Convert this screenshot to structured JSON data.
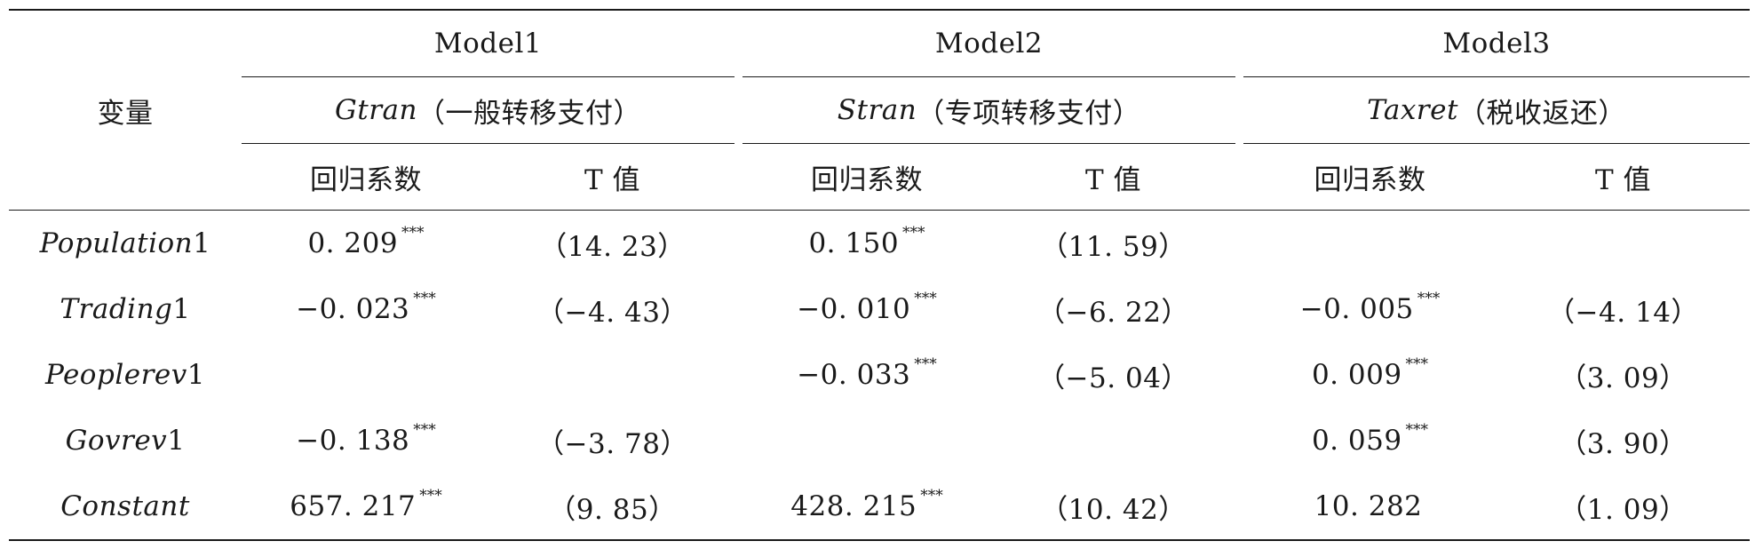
{
  "table": {
    "row_header_label": "变量",
    "models": [
      {
        "name": "Model1",
        "dep_var": "Gtran",
        "dep_desc": "（一般转移支付）"
      },
      {
        "name": "Model2",
        "dep_var": "Stran",
        "dep_desc": "（专项转移支付）"
      },
      {
        "name": "Model3",
        "dep_var": "Taxret",
        "dep_desc": "（税收返还）"
      }
    ],
    "col_headers": {
      "coef": "回归系数",
      "tval": "T 值"
    },
    "rows": [
      {
        "var": "Population",
        "suffix": "1",
        "cells": [
          {
            "coef": "0. 209",
            "stars": "***",
            "t": "（14. 23）"
          },
          {
            "coef": "0. 150",
            "stars": "***",
            "t": "（11. 59）"
          },
          {
            "coef": "",
            "stars": "",
            "t": ""
          }
        ]
      },
      {
        "var": "Trading",
        "suffix": "1",
        "cells": [
          {
            "coef": "−0. 023",
            "stars": "***",
            "t": "（−4. 43）"
          },
          {
            "coef": "−0. 010",
            "stars": "***",
            "t": "（−6. 22）"
          },
          {
            "coef": "−0. 005",
            "stars": "***",
            "t": "（−4. 14）"
          }
        ]
      },
      {
        "var": "Peoplerev",
        "suffix": "1",
        "cells": [
          {
            "coef": "",
            "stars": "",
            "t": ""
          },
          {
            "coef": "−0. 033",
            "stars": "***",
            "t": "（−5. 04）"
          },
          {
            "coef": "0. 009",
            "stars": "***",
            "t": "（3. 09）"
          }
        ]
      },
      {
        "var": "Govrev",
        "suffix": "1",
        "cells": [
          {
            "coef": "−0. 138",
            "stars": "***",
            "t": "（−3. 78）"
          },
          {
            "coef": "",
            "stars": "",
            "t": ""
          },
          {
            "coef": "0. 059",
            "stars": "***",
            "t": "（3. 90）"
          }
        ]
      },
      {
        "var": "Constant",
        "suffix": "",
        "cells": [
          {
            "coef": "657. 217",
            "stars": "***",
            "t": "（9. 85）"
          },
          {
            "coef": "428. 215",
            "stars": "***",
            "t": "（10. 42）"
          },
          {
            "coef": "10. 282",
            "stars": "",
            "t": "（1. 09）"
          }
        ]
      }
    ]
  }
}
